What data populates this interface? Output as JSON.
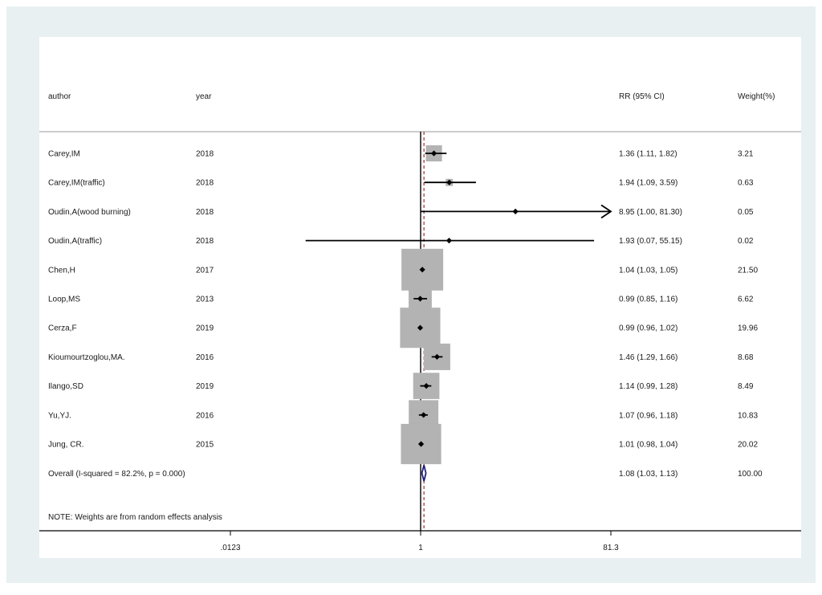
{
  "headers": {
    "author": "author",
    "year": "year",
    "rr": "RR (95% CI)",
    "weight": "Weight(%)"
  },
  "note": "NOTE: Weights are from random effects analysis",
  "colors": {
    "outer_background": "#e9f0f2",
    "weight_box": "#b3b3b3",
    "point": "#000000",
    "null_line": "#000000",
    "overall_line": "#a03030",
    "overall_diamond": "#1f1f7a"
  },
  "chart_data": {
    "type": "forest",
    "scale": "log",
    "xlim": [
      0.0123,
      81.3
    ],
    "x_ticks": [
      {
        "value": 0.0123,
        "label": ".0123"
      },
      {
        "value": 1,
        "label": "1"
      },
      {
        "value": 81.3,
        "label": "81.3"
      }
    ],
    "null_value": 1,
    "studies": [
      {
        "author": "Carey,IM",
        "year": "2018",
        "rr": 1.36,
        "lower": 1.11,
        "upper": 1.82,
        "weight": 3.21,
        "rr_label": "1.36 (1.11, 1.82)",
        "weight_label": "3.21"
      },
      {
        "author": "Carey,IM(traffic)",
        "year": "2018",
        "rr": 1.94,
        "lower": 1.09,
        "upper": 3.59,
        "weight": 0.63,
        "rr_label": "1.94 (1.09, 3.59)",
        "weight_label": "0.63"
      },
      {
        "author": "Oudin,A(wood burning)",
        "year": "2018",
        "rr": 8.95,
        "lower": 1.0,
        "upper": 81.3,
        "weight": 0.05,
        "rr_label": "8.95 (1.00, 81.30)",
        "weight_label": "0.05",
        "arrow_right": true
      },
      {
        "author": "Oudin,A(traffic)",
        "year": "2018",
        "rr": 1.93,
        "lower": 0.07,
        "upper": 55.15,
        "weight": 0.02,
        "rr_label": "1.93 (0.07, 55.15)",
        "weight_label": "0.02"
      },
      {
        "author": "Chen,H",
        "year": "2017",
        "rr": 1.04,
        "lower": 1.03,
        "upper": 1.05,
        "weight": 21.5,
        "rr_label": "1.04 (1.03, 1.05)",
        "weight_label": "21.50"
      },
      {
        "author": "Loop,MS",
        "year": "2013",
        "rr": 0.99,
        "lower": 0.85,
        "upper": 1.16,
        "weight": 6.62,
        "rr_label": "0.99 (0.85, 1.16)",
        "weight_label": "6.62"
      },
      {
        "author": "Cerza,F",
        "year": "2019",
        "rr": 0.99,
        "lower": 0.96,
        "upper": 1.02,
        "weight": 19.96,
        "rr_label": "0.99 (0.96, 1.02)",
        "weight_label": "19.96"
      },
      {
        "author": "Kioumourtzoglou,MA.",
        "year": "2016",
        "rr": 1.46,
        "lower": 1.29,
        "upper": 1.66,
        "weight": 8.68,
        "rr_label": "1.46 (1.29, 1.66)",
        "weight_label": "8.68"
      },
      {
        "author": "Ilango,SD",
        "year": "2019",
        "rr": 1.14,
        "lower": 0.99,
        "upper": 1.28,
        "weight": 8.49,
        "rr_label": "1.14 (0.99, 1.28)",
        "weight_label": "8.49"
      },
      {
        "author": "Yu,YJ.",
        "year": "2016",
        "rr": 1.07,
        "lower": 0.96,
        "upper": 1.18,
        "weight": 10.83,
        "rr_label": "1.07 (0.96, 1.18)",
        "weight_label": "10.83"
      },
      {
        "author": "Jung, CR.",
        "year": "2015",
        "rr": 1.01,
        "lower": 0.98,
        "upper": 1.04,
        "weight": 20.02,
        "rr_label": "1.01 (0.98, 1.04)",
        "weight_label": "20.02"
      }
    ],
    "overall": {
      "label": "Overall  (I-squared = 82.2%, p = 0.000)",
      "rr": 1.08,
      "lower": 1.03,
      "upper": 1.13,
      "weight": 100.0,
      "rr_label": "1.08 (1.03, 1.13)",
      "weight_label": "100.00"
    }
  }
}
